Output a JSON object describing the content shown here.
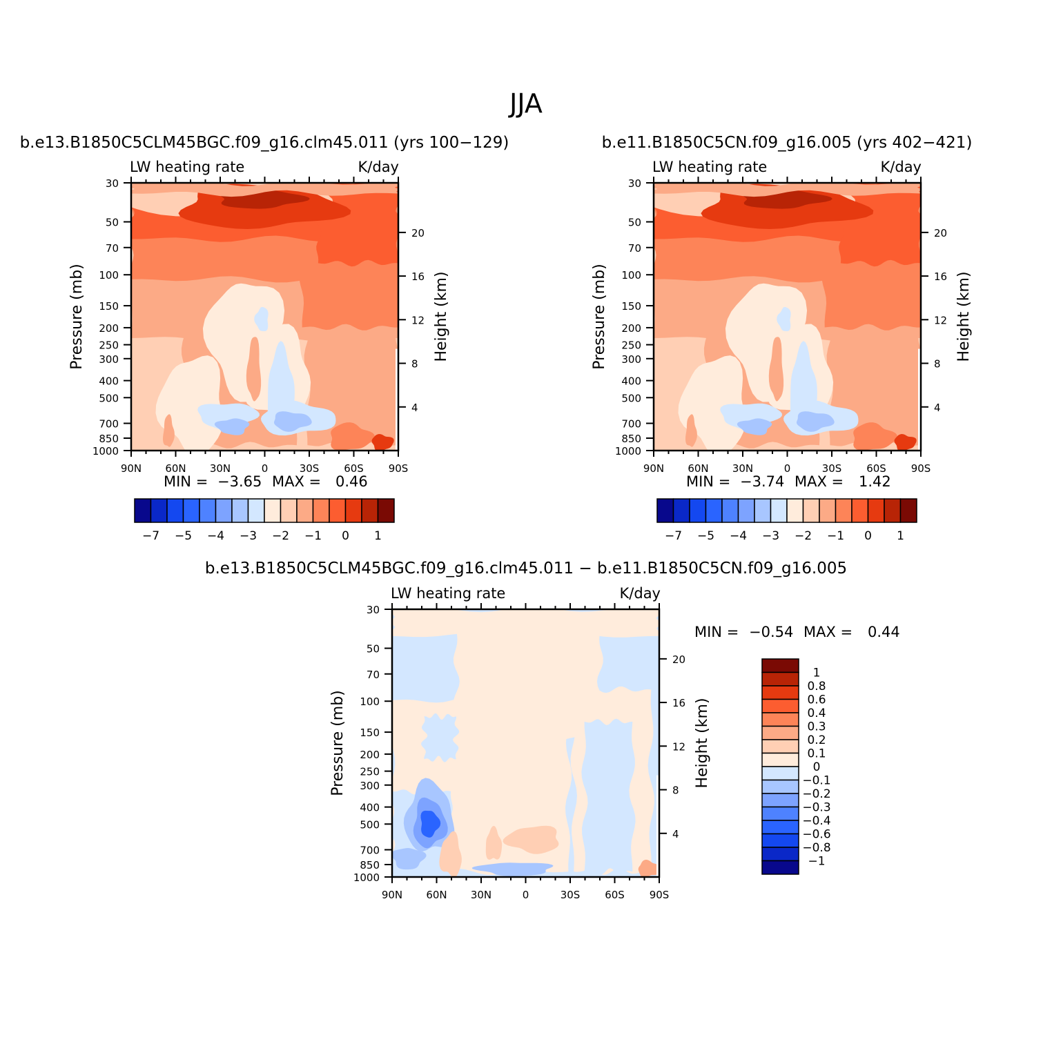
{
  "page": {
    "title": "JJA"
  },
  "palette": {
    "colors": [
      "#08088c",
      "#0a28c8",
      "#1448f0",
      "#2a64ff",
      "#4e82ff",
      "#7da3ff",
      "#a8c6ff",
      "#d3e7ff",
      "#ffecdc",
      "#ffcfb4",
      "#fcaa86",
      "#fd8458",
      "#fc5d30",
      "#e63a10",
      "#b82406",
      "#7a0a04"
    ],
    "land_mask": "#ffffff",
    "frame": "#000000"
  },
  "chart_data": [
    {
      "type": "contour",
      "id": "panel-a",
      "title": "b.e13.B1850C5CLM45BGC.f09_g16.clm45.011 (yrs 100−129)",
      "left_string": "LW heating rate",
      "right_string": "K/day",
      "ylabel": "Pressure (mb)",
      "ylabel_right": "Height (km)",
      "x_ticks": [
        "90N",
        "60N",
        "30N",
        "0",
        "30S",
        "60S",
        "90S"
      ],
      "y_ticks": [
        "30",
        "50",
        "70",
        "100",
        "150",
        "200",
        "250",
        "300",
        "400",
        "500",
        "700",
        "850",
        "1000"
      ],
      "y_ticks_right": [
        "20",
        "16",
        "12",
        "8",
        "4"
      ],
      "min_label": "MIN =",
      "min_value": "−3.65",
      "max_label": "MAX =",
      "max_value": "0.46",
      "colorbar_labels": [
        "−7",
        "−5",
        "−4",
        "−3",
        "−2",
        "−1",
        "0",
        "1"
      ],
      "levels": [
        -7,
        -6,
        -5,
        -4.5,
        -4,
        -3.5,
        -3,
        -2.5,
        -2,
        -1.5,
        -1,
        -0.5,
        0,
        0.5,
        1
      ]
    },
    {
      "type": "contour",
      "id": "panel-b",
      "title": "b.e11.B1850C5CN.f09_g16.005 (yrs 402−421)",
      "left_string": "LW heating rate",
      "right_string": "K/day",
      "ylabel": "Pressure (mb)",
      "ylabel_right": "Height (km)",
      "x_ticks": [
        "90N",
        "60N",
        "30N",
        "0",
        "30S",
        "60S",
        "90S"
      ],
      "y_ticks": [
        "30",
        "50",
        "70",
        "100",
        "150",
        "200",
        "250",
        "300",
        "400",
        "500",
        "700",
        "850",
        "1000"
      ],
      "y_ticks_right": [
        "20",
        "16",
        "12",
        "8",
        "4"
      ],
      "min_label": "MIN =",
      "min_value": "−3.74",
      "max_label": "MAX =",
      "max_value": "1.42",
      "colorbar_labels": [
        "−7",
        "−5",
        "−4",
        "−3",
        "−2",
        "−1",
        "0",
        "1"
      ],
      "levels": [
        -7,
        -6,
        -5,
        -4.5,
        -4,
        -3.5,
        -3,
        -2.5,
        -2,
        -1.5,
        -1,
        -0.5,
        0,
        0.5,
        1
      ]
    },
    {
      "type": "contour",
      "id": "panel-diff",
      "title": "b.e13.B1850C5CLM45BGC.f09_g16.clm45.011 − b.e11.B1850C5CN.f09_g16.005",
      "left_string": "LW heating rate",
      "right_string": "K/day",
      "ylabel": "Pressure (mb)",
      "ylabel_right": "Height (km)",
      "x_ticks": [
        "90N",
        "60N",
        "30N",
        "0",
        "30S",
        "60S",
        "90S"
      ],
      "y_ticks": [
        "30",
        "50",
        "70",
        "100",
        "150",
        "200",
        "250",
        "300",
        "400",
        "500",
        "700",
        "850",
        "1000"
      ],
      "y_ticks_right": [
        "20",
        "16",
        "12",
        "8",
        "4"
      ],
      "min_label": "MIN =",
      "min_value": "−0.54",
      "max_label": "MAX =",
      "max_value": "0.44",
      "colorbar_labels": [
        "1",
        "0.8",
        "0.6",
        "0.4",
        "0.3",
        "0.2",
        "0.1",
        "0",
        "−0.1",
        "−0.2",
        "−0.3",
        "−0.4",
        "−0.6",
        "−0.8",
        "−1"
      ],
      "levels": [
        -1,
        -0.8,
        -0.6,
        -0.4,
        -0.3,
        -0.2,
        -0.1,
        0,
        0.1,
        0.2,
        0.3,
        0.4,
        0.6,
        0.8,
        1
      ]
    }
  ]
}
